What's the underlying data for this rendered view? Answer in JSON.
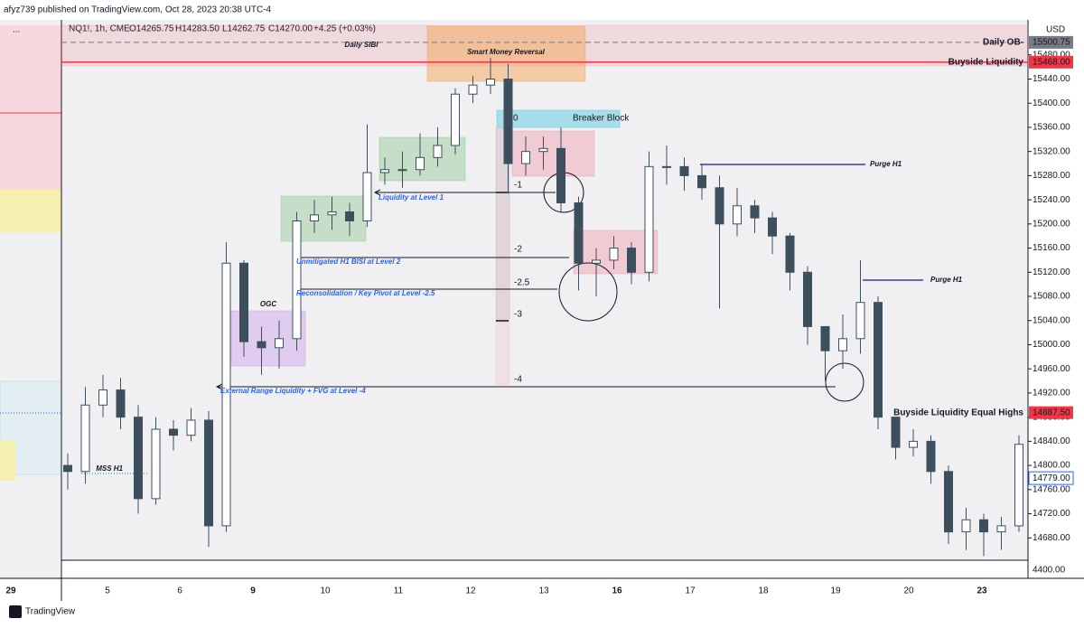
{
  "header": {
    "published": "afyz739 published on TradingView.com, Oct 28, 2023 20:38 UTC-4",
    "symbol": "NQ1!, 1h, CME",
    "open": "O14265.75",
    "high": "H14283.50",
    "low": "L14262.75",
    "close": "C14270.00",
    "change": "+4.25 (+0.03%)"
  },
  "left_pane": {
    "menu": "...",
    "date": "29"
  },
  "footer": {
    "brand": "TradingView"
  },
  "chart_data": {
    "type": "candlestick",
    "currency": "USD",
    "lower_pane_label": "4400.00",
    "ylim": [
      14643,
      15538
    ],
    "yticks": [
      {
        "value": 14680,
        "label": "14680.00"
      },
      {
        "value": 14720,
        "label": "14720.00"
      },
      {
        "value": 14760,
        "label": "14760.00"
      },
      {
        "value": 14800,
        "label": "14800.00"
      },
      {
        "value": 14840,
        "label": "14840.00"
      },
      {
        "value": 14880,
        "label": "14880.00"
      },
      {
        "value": 14920,
        "label": "14920.00"
      },
      {
        "value": 14960,
        "label": "14960.00"
      },
      {
        "value": 15000,
        "label": "15000.00"
      },
      {
        "value": 15040,
        "label": "15040.00"
      },
      {
        "value": 15080,
        "label": "15080.00"
      },
      {
        "value": 15120,
        "label": "15120.00"
      },
      {
        "value": 15160,
        "label": "15160.00"
      },
      {
        "value": 15200,
        "label": "15200.00"
      },
      {
        "value": 15240,
        "label": "15240.00"
      },
      {
        "value": 15280,
        "label": "15280.00"
      },
      {
        "value": 15320,
        "label": "15320.00"
      },
      {
        "value": 15360,
        "label": "15360.00"
      },
      {
        "value": 15400,
        "label": "15400.00"
      },
      {
        "value": 15440,
        "label": "15440.00"
      },
      {
        "value": 15480,
        "label": "15480.00"
      }
    ],
    "x_labels": [
      "5",
      "6",
      "9",
      "10",
      "11",
      "12",
      "13",
      "16",
      "17",
      "18",
      "19",
      "20",
      "23"
    ],
    "open": [
      14800,
      14790,
      14900,
      14925,
      14880,
      14745,
      14860,
      14850,
      14875,
      14700,
      15135,
      15005,
      14995,
      15010,
      15205,
      15215,
      15220,
      15205,
      15285,
      15290,
      15290,
      15310,
      15330,
      15415,
      15430,
      15440,
      15300,
      15320,
      15325,
      15235,
      15135,
      15140,
      15160,
      15120,
      15295,
      15295,
      15280,
      15260,
      15200,
      15230,
      15210,
      15180,
      15120,
      15030,
      14990,
      15010,
      15070,
      14880,
      14830,
      14840,
      14790,
      14690,
      14710,
      14690,
      14700
    ],
    "high": [
      14820,
      14930,
      14950,
      14945,
      14900,
      14880,
      14875,
      14895,
      14890,
      15170,
      15140,
      15030,
      15040,
      15220,
      15240,
      15245,
      15235,
      15365,
      15310,
      15320,
      15350,
      15360,
      15425,
      15445,
      15475,
      15465,
      15345,
      15345,
      15360,
      15245,
      15160,
      15180,
      15170,
      15320,
      15330,
      15310,
      15300,
      15280,
      15260,
      15240,
      15220,
      15185,
      15130,
      15030,
      15050,
      15140,
      15080,
      14880,
      14860,
      14850,
      14800,
      14730,
      14720,
      14715,
      14850
    ],
    "low": [
      14760,
      14770,
      14880,
      14860,
      14720,
      14735,
      14825,
      14840,
      14665,
      14690,
      14980,
      14950,
      14960,
      14990,
      15185,
      15190,
      15180,
      15195,
      15265,
      15260,
      15280,
      15295,
      15315,
      15400,
      15415,
      15250,
      15280,
      15290,
      15220,
      15090,
      15080,
      15125,
      15100,
      15105,
      15265,
      15255,
      15240,
      15060,
      15180,
      15185,
      15150,
      15090,
      15000,
      14940,
      14960,
      14985,
      14860,
      14810,
      14815,
      14770,
      14670,
      14660,
      14650,
      14660,
      14690
    ],
    "close": [
      14790,
      14900,
      14925,
      14880,
      14745,
      14860,
      14850,
      14875,
      14700,
      15135,
      15005,
      14995,
      15010,
      15205,
      15215,
      15220,
      15205,
      15285,
      15290,
      15290,
      15310,
      15330,
      15415,
      15430,
      15440,
      15300,
      15320,
      15325,
      15235,
      15135,
      15140,
      15160,
      15120,
      15295,
      15295,
      15280,
      15260,
      15200,
      15230,
      15210,
      15180,
      15120,
      15030,
      14990,
      15010,
      15070,
      14880,
      14830,
      14840,
      14790,
      14690,
      14710,
      14690,
      14700,
      14835
    ],
    "up_color": "#ffffff",
    "down_color": "#3d4f5c",
    "price_labels": [
      {
        "name": "Daily OB-",
        "value": 15500.75,
        "label": "15500.75",
        "color": "#787b86"
      },
      {
        "name": "Buyside Liquidity",
        "value": 15468.0,
        "label": "15468.00",
        "color": "#f23645"
      },
      {
        "name": "Buyside Liquidity Equal Highs",
        "value": 14887.5,
        "label": "14887.50",
        "color": "#f23645"
      },
      {
        "value": 14779.0,
        "label": "14779.00",
        "color": "#2962ff"
      }
    ],
    "annotations": [
      "Daily SIBI",
      "Smart Money Reversal",
      "Breaker Block",
      "Liquidity at Level 1",
      "Unmitigated H1 BISI at Level 2",
      "OGC",
      "Reconsolidation / Key Pivot at Level -2.5",
      "External Range Liquidity + FVG at Level -4",
      "MSS H1",
      "Purge H1",
      "Purge H1"
    ],
    "levels": [
      "0",
      "-1",
      "-2",
      "-2.5",
      "-3",
      "-4"
    ]
  }
}
